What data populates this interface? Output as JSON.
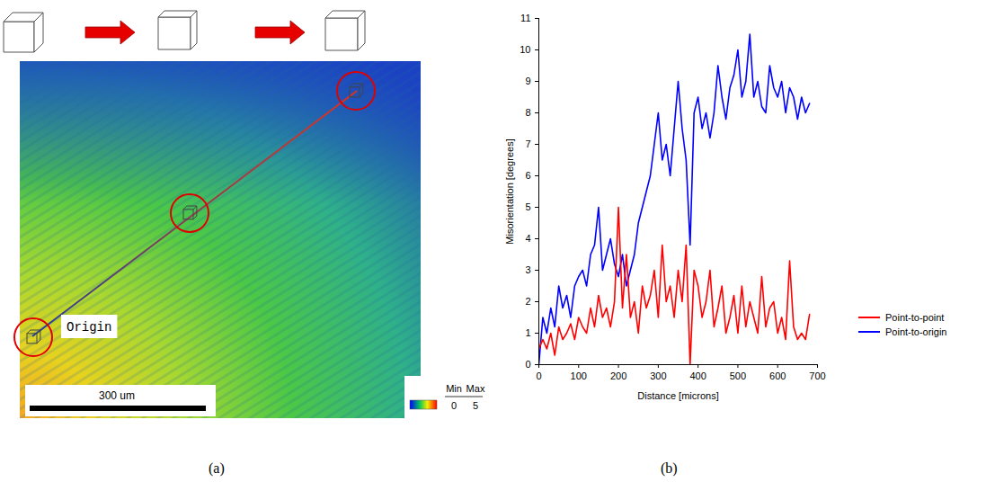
{
  "panel_labels": [
    "(a)",
    "(b)"
  ],
  "map": {
    "annotation": "Origin",
    "scale_bar": "300 um",
    "color_bar": {
      "min_label": "Min",
      "max_label": "Max",
      "range": [
        0,
        5
      ]
    }
  },
  "chart_data": {
    "type": "line",
    "x_label": "Distance [microns]",
    "y_label": "Misorientation [degrees]",
    "x": [
      0,
      10,
      20,
      30,
      40,
      50,
      60,
      70,
      80,
      90,
      100,
      110,
      120,
      130,
      140,
      150,
      160,
      170,
      180,
      190,
      200,
      210,
      220,
      230,
      240,
      250,
      260,
      270,
      280,
      290,
      300,
      310,
      320,
      330,
      340,
      350,
      360,
      370,
      380,
      390,
      400,
      410,
      420,
      430,
      440,
      450,
      460,
      470,
      480,
      490,
      500,
      510,
      520,
      530,
      540,
      550,
      560,
      570,
      580,
      590,
      600,
      610,
      620,
      630,
      640,
      650,
      660,
      670,
      680
    ],
    "series": [
      {
        "name": "Point-to-point",
        "color": "#ff0000",
        "line_style": "solid",
        "values": [
          0.5,
          0.8,
          0.5,
          1.0,
          0.3,
          1.2,
          0.8,
          1.0,
          1.3,
          0.8,
          1.5,
          1.2,
          1.0,
          1.8,
          1.2,
          2.2,
          1.5,
          1.8,
          1.2,
          2.0,
          5.0,
          1.8,
          3.5,
          1.5,
          2.0,
          1.0,
          2.5,
          1.8,
          2.2,
          3.0,
          1.5,
          3.8,
          2.0,
          2.5,
          1.5,
          3.0,
          2.0,
          3.8,
          0.0,
          3.0,
          2.5,
          1.5,
          2.0,
          3.0,
          1.2,
          1.8,
          2.5,
          1.0,
          1.5,
          2.2,
          1.0,
          2.5,
          1.2,
          2.0,
          1.5,
          1.0,
          2.8,
          1.2,
          1.8,
          2.0,
          1.0,
          1.5,
          0.8,
          3.3,
          1.2,
          0.8,
          1.0,
          0.8,
          1.6
        ]
      },
      {
        "name": "Point-to-origin",
        "color": "#0000ff",
        "line_style": "solid",
        "values": [
          0,
          1.5,
          1.0,
          1.8,
          1.2,
          2.5,
          1.8,
          2.2,
          1.5,
          2.5,
          2.8,
          3.0,
          2.5,
          3.5,
          3.8,
          5.0,
          3.0,
          3.5,
          4.0,
          3.2,
          2.8,
          3.5,
          2.5,
          3.0,
          3.5,
          4.5,
          5.0,
          5.5,
          6.0,
          7.0,
          8.0,
          6.5,
          7.0,
          6.0,
          7.5,
          9.0,
          7.5,
          6.5,
          3.8,
          8.0,
          8.5,
          7.5,
          8.0,
          7.2,
          8.0,
          9.5,
          8.5,
          7.8,
          8.8,
          9.2,
          10.0,
          8.5,
          9.0,
          10.5,
          8.5,
          9.0,
          8.2,
          8.0,
          9.5,
          8.8,
          8.5,
          9.0,
          8.0,
          8.8,
          8.5,
          7.8,
          8.5,
          8.0,
          8.3
        ]
      }
    ],
    "xlim": [
      0,
      700
    ],
    "xticks": [
      0,
      100,
      200,
      300,
      400,
      500,
      600,
      700
    ],
    "ylim": [
      0,
      11
    ],
    "yticks": [
      0,
      1,
      2,
      3,
      4,
      5,
      6,
      7,
      8,
      9,
      10,
      11
    ],
    "grid": false,
    "legend": "right"
  }
}
